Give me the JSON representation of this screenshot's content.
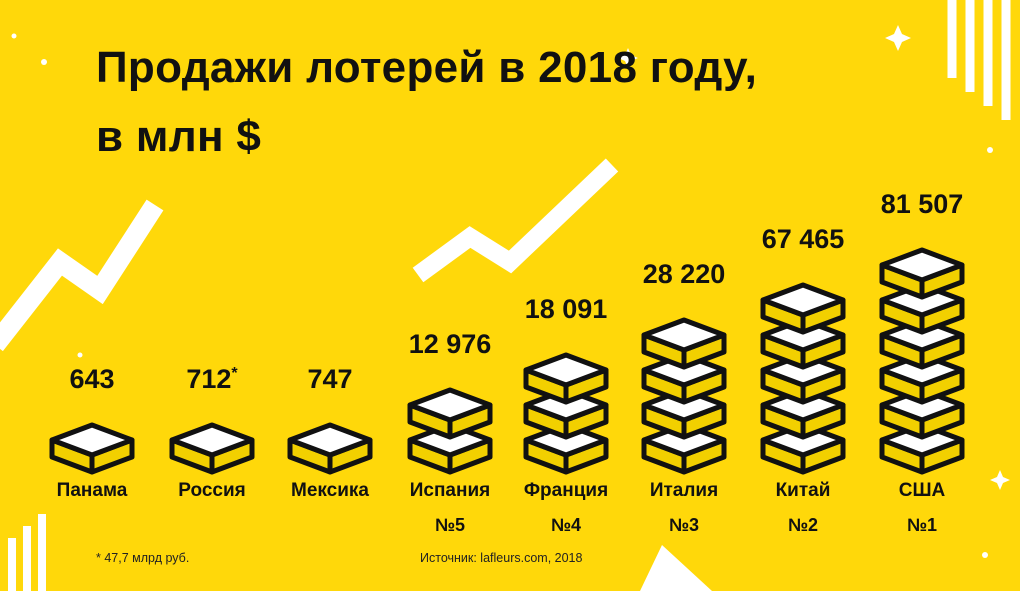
{
  "header": {
    "title_line1": "Продажи лотерей в 2018 году,",
    "title_line2": "в млн $"
  },
  "chart_data": {
    "type": "bar",
    "title": "Продажи лотерей в 2018 году, в млн $",
    "categories": [
      "Панама",
      "Россия",
      "Мексика",
      "Испания",
      "Франция",
      "Италия",
      "Китай",
      "США"
    ],
    "values": [
      643,
      712,
      747,
      12976,
      18091,
      28220,
      67465,
      81507
    ],
    "value_labels": [
      "643",
      "712",
      "747",
      "12 976",
      "18 091",
      "28 220",
      "67 465",
      "81 507"
    ],
    "value_markers": [
      "",
      "*",
      "",
      "",
      "",
      "",
      "",
      ""
    ],
    "block_counts": [
      1,
      1,
      1,
      2,
      3,
      4,
      5,
      6
    ],
    "ranks": [
      "",
      "",
      "",
      "№5",
      "№4",
      "№3",
      "№2",
      "№1"
    ]
  },
  "footnote": "* 47,7 млрд руб.",
  "source": "Источник: lafleurs.com, 2018",
  "colors": {
    "background": "#FFD80A",
    "block_fill": "#F2D000",
    "block_top": "#FFFFFF",
    "outline": "#111111",
    "decoration": "#FFFFFF"
  }
}
